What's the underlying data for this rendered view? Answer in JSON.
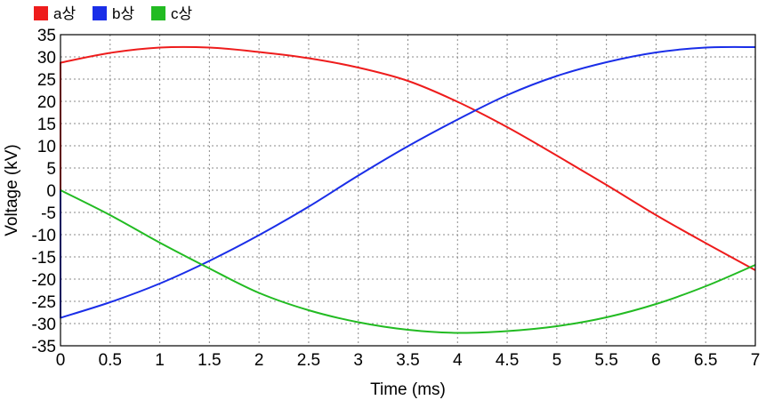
{
  "chart_data": {
    "type": "line",
    "title": "",
    "xlabel": "Time (ms)",
    "ylabel": "Voltage (kV)",
    "xlim": [
      0,
      7
    ],
    "ylim": [
      -35,
      35
    ],
    "x_ticks": [
      0,
      0.5,
      1,
      1.5,
      2,
      2.5,
      3,
      3.5,
      4,
      4.5,
      5,
      5.5,
      6,
      6.5,
      7
    ],
    "x_tick_labels": [
      "0",
      "0.5",
      "1",
      "1.5",
      "2",
      "2.5",
      "3",
      "3.5",
      "4",
      "4.5",
      "5",
      "5.5",
      "6",
      "6.5",
      "7"
    ],
    "y_ticks": [
      35,
      30,
      25,
      20,
      15,
      10,
      5,
      0,
      -5,
      -10,
      -15,
      -20,
      -25,
      -30,
      -35
    ],
    "y_tick_labels": [
      "35",
      "30",
      "25",
      "20",
      "15",
      "10",
      "5",
      "0",
      "-5",
      "-10",
      "-15",
      "-20",
      "-25",
      "-30",
      "-35"
    ],
    "grid": true,
    "grid_style": "dotted",
    "legend_position": "top-left",
    "x": [
      0,
      0.5,
      1,
      1.5,
      2,
      2.5,
      3,
      3.5,
      4,
      4.5,
      5,
      5.5,
      6,
      6.5,
      7
    ],
    "series": [
      {
        "name": "a상",
        "color": "#ee1c1c",
        "initial_jump_from": 0,
        "values": [
          28.7,
          30.9,
          32.1,
          32.1,
          31.1,
          29.7,
          27.6,
          24.6,
          19.9,
          14.2,
          7.8,
          1.2,
          -5.6,
          -11.9,
          -18.0
        ]
      },
      {
        "name": "b상",
        "color": "#1a2ee8",
        "initial_jump_from": 0,
        "values": [
          -28.7,
          -25.2,
          -21.0,
          -15.9,
          -10.1,
          -3.7,
          3.3,
          9.9,
          15.9,
          21.4,
          25.7,
          28.8,
          31.0,
          32.1,
          32.2
        ]
      },
      {
        "name": "c상",
        "color": "#22bb22",
        "values": [
          0,
          -5.6,
          -11.8,
          -17.6,
          -23.1,
          -27.0,
          -29.7,
          -31.4,
          -32.1,
          -31.7,
          -30.6,
          -28.6,
          -25.6,
          -21.6,
          -16.8
        ]
      }
    ]
  }
}
